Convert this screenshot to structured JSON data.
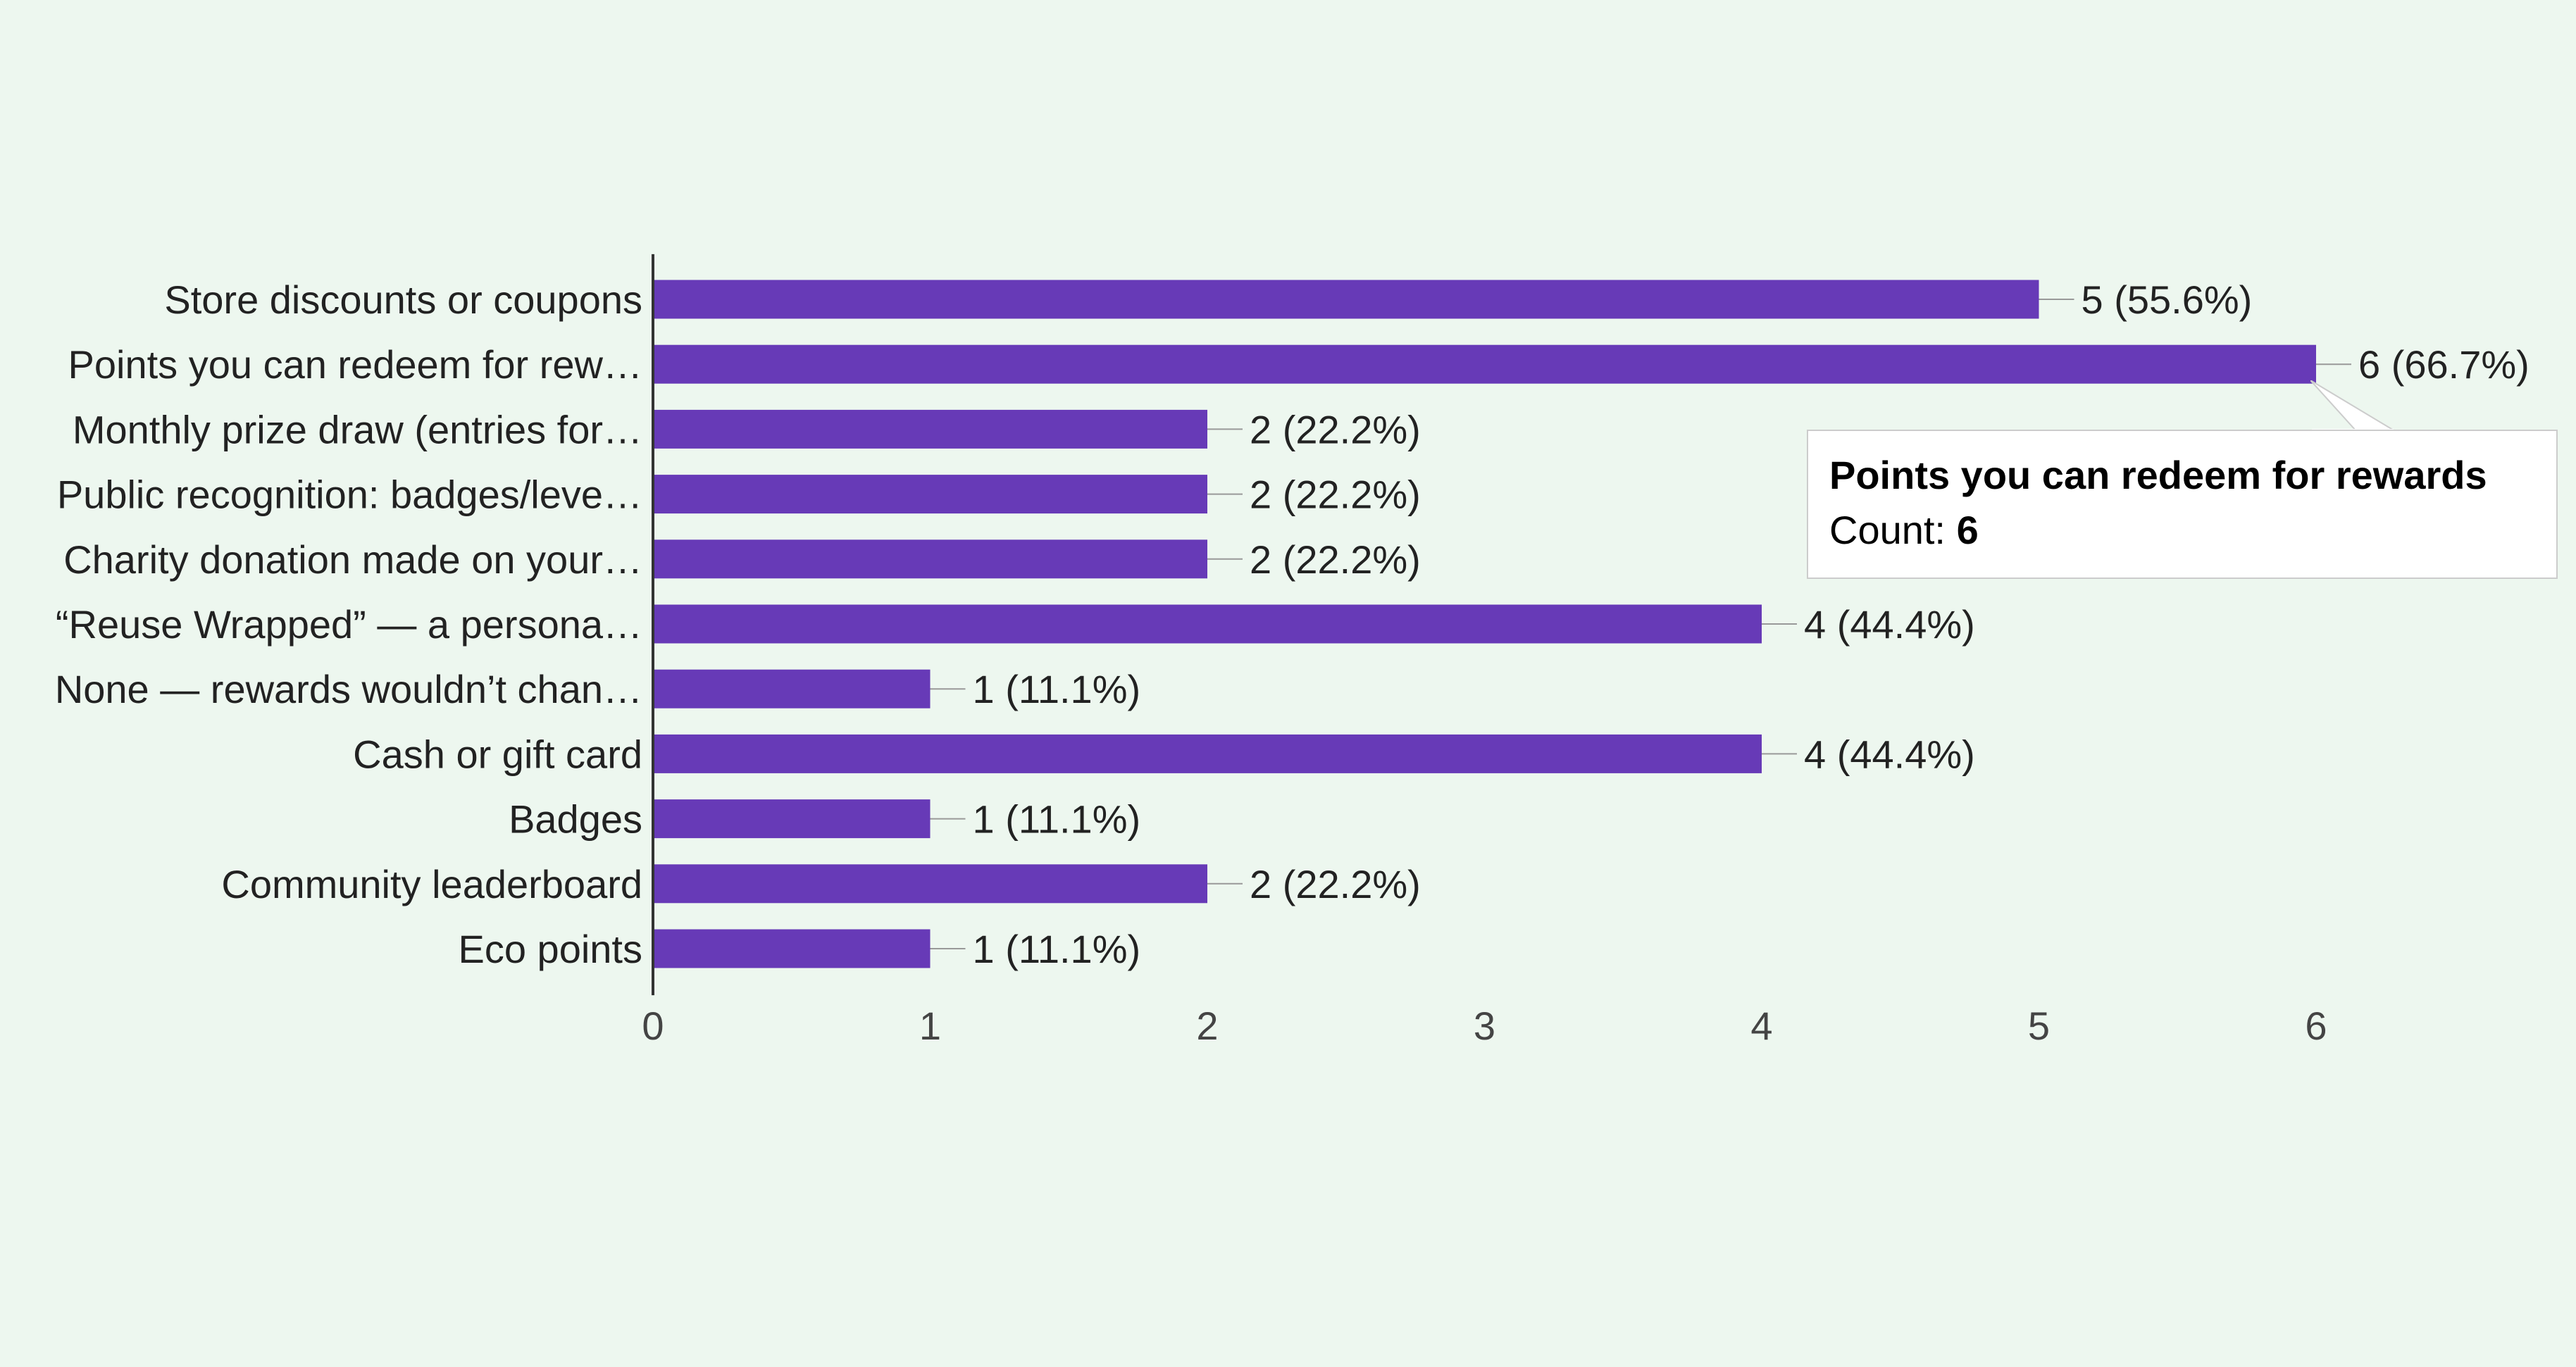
{
  "chart_data": {
    "type": "bar",
    "orientation": "horizontal",
    "categories": [
      "Store discounts or coupons",
      "Points you can redeem for rew…",
      "Monthly prize draw (entries for…",
      "Public recognition: badges/leve…",
      "Charity donation made on your…",
      "“Reuse Wrapped” — a persona…",
      "None — rewards wouldn’t chan…",
      "Cash or gift card",
      "Badges",
      "Community leaderboard",
      "Eco points"
    ],
    "values": [
      5,
      6,
      2,
      2,
      2,
      4,
      1,
      4,
      1,
      2,
      1
    ],
    "data_labels": [
      "5 (55.6%)",
      "6 (66.7%)",
      "2 (22.2%)",
      "2 (22.2%)",
      "2 (22.2%)",
      "4 (44.4%)",
      "1 (11.1%)",
      "4 (44.4%)",
      "1 (11.1%)",
      "2 (22.2%)",
      "1 (11.1%)"
    ],
    "xticks": [
      "0",
      "1",
      "2",
      "3",
      "4",
      "5",
      "6"
    ],
    "xlim": [
      0,
      6
    ],
    "grid": false,
    "colors": {
      "bar": "#673ab7",
      "background": "#edf7ef",
      "axis": "#333333",
      "leader": "#999999"
    },
    "tooltip": {
      "title": "Points you can redeem for rewards",
      "count_label": "Count: ",
      "count_value": "6"
    }
  }
}
